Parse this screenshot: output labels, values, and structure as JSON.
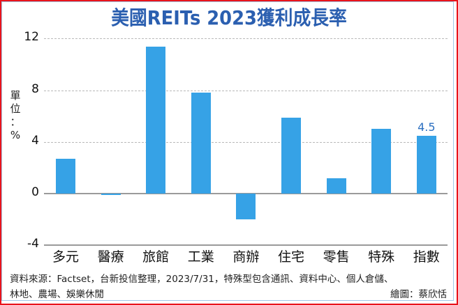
{
  "title": "美國REITs 2023獲利成長率",
  "unit_label": [
    "單",
    "位",
    "：",
    "%"
  ],
  "source": "資料來源：Factset，台新投信整理，2023/7/31，特殊型包含通訊、資料中心、個人倉儲、",
  "source_line2": "林地、農場、娛樂休閒",
  "credit": "繪圖：蔡欣恬",
  "chart_data": {
    "type": "bar",
    "title": "美國REITs 2023獲利成長率",
    "xlabel": "",
    "ylabel": "單位：%",
    "categories": [
      "多元",
      "醫療",
      "旅館",
      "工業",
      "商辦",
      "住宅",
      "零售",
      "特殊",
      "指數"
    ],
    "values": [
      2.7,
      -0.1,
      11.4,
      7.8,
      -2.0,
      5.9,
      1.2,
      5.0,
      4.5
    ],
    "data_labels": [
      {
        "category": "指數",
        "text": "4.5"
      }
    ],
    "yticks": [
      "12",
      "8",
      "4",
      "0",
      "-4"
    ],
    "ylim": [
      -4,
      12
    ],
    "grid": true,
    "bar_color": "#36a2e6",
    "title_color": "#2b5fb0"
  }
}
